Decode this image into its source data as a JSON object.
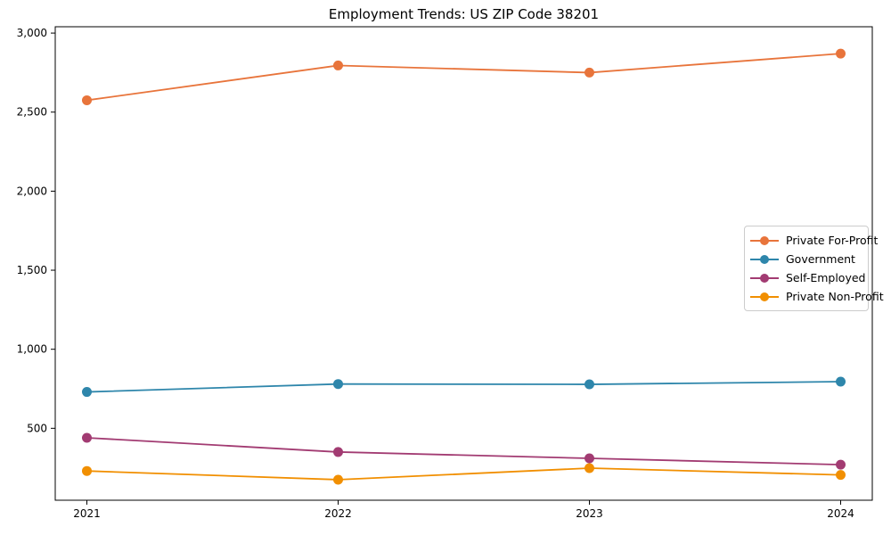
{
  "chart_data": {
    "type": "line",
    "title": "Employment Trends: US ZIP Code 38201",
    "categories": [
      "2021",
      "2022",
      "2023",
      "2024"
    ],
    "series": [
      {
        "name": "Private For-Profit",
        "color": "#E8743B",
        "values": [
          2575,
          2795,
          2750,
          2870
        ]
      },
      {
        "name": "Government",
        "color": "#2E86AB",
        "values": [
          730,
          780,
          778,
          795
        ]
      },
      {
        "name": "Self-Employed",
        "color": "#A23B72",
        "values": [
          440,
          350,
          310,
          270
        ]
      },
      {
        "name": "Private Non-Profit",
        "color": "#F18F01",
        "values": [
          230,
          175,
          248,
          205
        ]
      }
    ],
    "xlabel": "",
    "ylabel": "",
    "yticks": [
      {
        "value": 500,
        "label": "500"
      },
      {
        "value": 1000,
        "label": "1,000"
      },
      {
        "value": 1500,
        "label": "1,500"
      },
      {
        "value": 2000,
        "label": "2,000"
      },
      {
        "value": 2500,
        "label": "2,500"
      },
      {
        "value": 3000,
        "label": "3,000"
      }
    ],
    "ylim": [
      45,
      3040
    ],
    "grid": false,
    "legend_position": "center-right",
    "marker": "circle"
  }
}
